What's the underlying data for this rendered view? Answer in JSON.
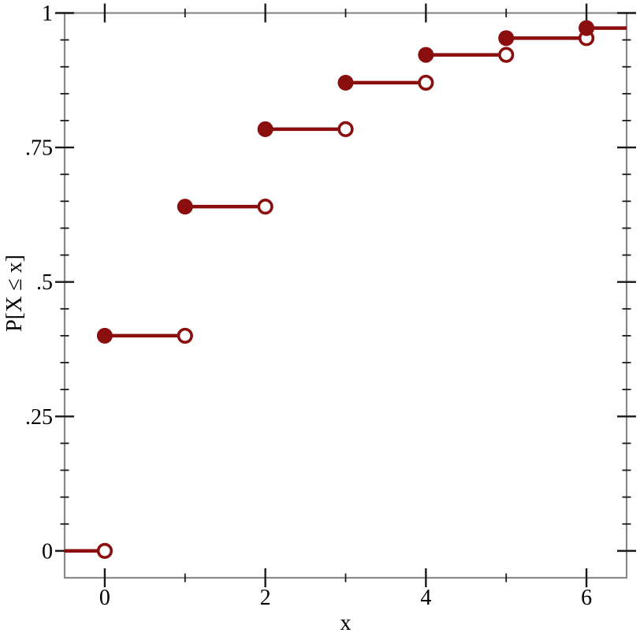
{
  "figure": {
    "background": "#ffffff"
  },
  "chart_data": {
    "type": "line",
    "subtype": "step-cdf",
    "title": "",
    "xlabel": "x",
    "ylabel": "P[X ≤ x]",
    "xlim": [
      -0.5,
      6.5
    ],
    "ylim": [
      -0.05,
      1.0
    ],
    "x": [
      0,
      1,
      2,
      3,
      4,
      5,
      6
    ],
    "cdf": [
      0.4,
      0.64,
      0.784,
      0.8704,
      0.9222,
      0.9533,
      0.972
    ],
    "baseline_value": 0,
    "x_major_ticks": {
      "values": [
        0,
        2,
        4,
        6
      ],
      "labels": [
        "0",
        "2",
        "4",
        "6"
      ]
    },
    "x_minor_ticks": [
      1,
      3,
      5
    ],
    "y_major_ticks": {
      "values": [
        0,
        0.25,
        0.5,
        0.75,
        1
      ],
      "labels": [
        "0",
        ".25",
        ".5",
        ".75",
        "1"
      ]
    },
    "y_minor_tick_step": 0.05,
    "grid": false,
    "legend": "none",
    "marker_style": {
      "left_endpoint": "filled",
      "right_endpoint": "open"
    },
    "colors": {
      "series": "#8b0e0e",
      "open_marker_fill": "#ffffff",
      "frame": "#8a8a8a",
      "ticks": "#1a1a1a",
      "text": "#000000",
      "background": "#ffffff"
    }
  }
}
